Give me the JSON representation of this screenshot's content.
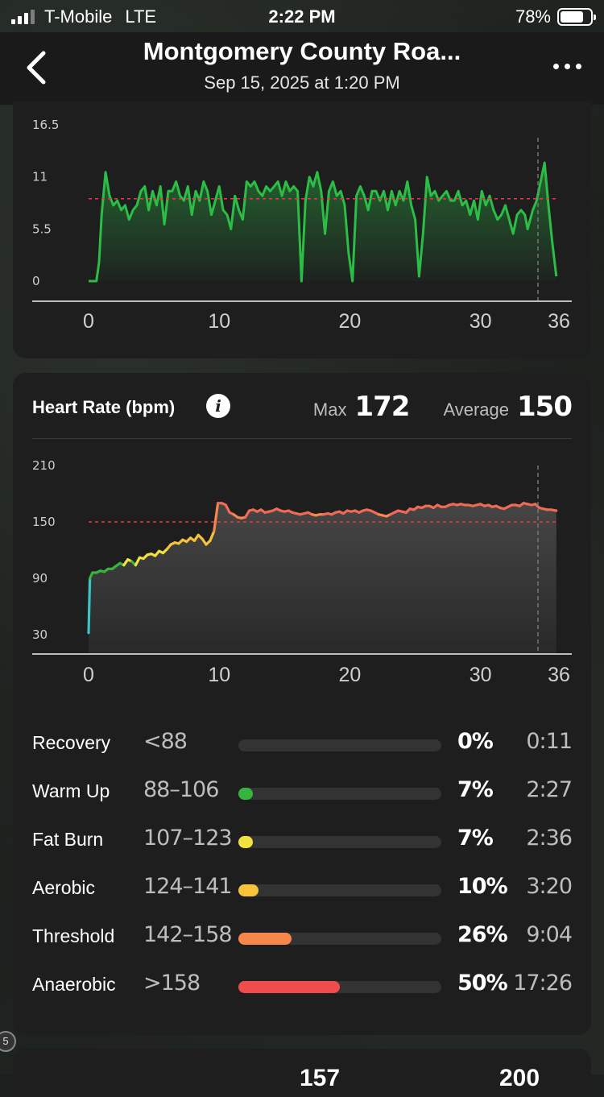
{
  "status_bar": {
    "carrier": "T-Mobile",
    "network": "LTE",
    "time": "2:22 PM",
    "battery": "78%",
    "battery_level": 0.78
  },
  "header": {
    "title": "Montgomery County Roa...",
    "subtitle": "Sep 15, 2025 at 1:20 PM",
    "back_icon": "chevron-left-icon",
    "more_icon": "more-dots-icon"
  },
  "speed_chart": {
    "y_ticks": [
      "16.5",
      "11",
      "5.5",
      "0"
    ],
    "x_ticks": [
      "0",
      "10",
      "20",
      "30",
      "36"
    ],
    "average_value": 8.7,
    "color": "#2bbd46",
    "chart_data": {
      "type": "area",
      "ylim": [
        0,
        16.5
      ],
      "xlim": [
        0,
        36
      ],
      "x": [
        0,
        0.3,
        0.6,
        0.8,
        1.0,
        1.3,
        1.6,
        1.9,
        2.2,
        2.5,
        2.8,
        3.1,
        3.4,
        3.7,
        4.0,
        4.3,
        4.6,
        4.9,
        5.2,
        5.5,
        5.8,
        6.1,
        6.4,
        6.7,
        7.0,
        7.3,
        7.6,
        7.9,
        8.2,
        8.5,
        8.8,
        9.1,
        9.4,
        9.7,
        10.0,
        10.3,
        10.6,
        10.9,
        11.2,
        11.5,
        11.8,
        12.1,
        12.4,
        12.7,
        13.0,
        13.3,
        13.6,
        13.9,
        14.2,
        14.5,
        14.8,
        15.1,
        15.4,
        15.7,
        16.0,
        16.3,
        16.6,
        16.9,
        17.2,
        17.5,
        17.8,
        18.1,
        18.4,
        18.7,
        19.0,
        19.3,
        19.6,
        19.9,
        20.2,
        20.5,
        20.8,
        21.1,
        21.4,
        21.7,
        22.0,
        22.3,
        22.6,
        22.9,
        23.2,
        23.5,
        23.8,
        24.1,
        24.4,
        24.7,
        25.0,
        25.3,
        25.6,
        25.9,
        26.2,
        26.5,
        26.8,
        27.1,
        27.4,
        27.7,
        28.0,
        28.3,
        28.6,
        28.9,
        29.2,
        29.5,
        29.8,
        30.1,
        30.4,
        30.7,
        31.0,
        31.3,
        31.6,
        31.9,
        32.2,
        32.5,
        32.8,
        33.1,
        33.4,
        33.6,
        34.0,
        34.3,
        34.6,
        34.9,
        35.2,
        35.5,
        35.8
      ],
      "values": [
        0,
        0,
        0,
        2,
        7,
        11.5,
        9,
        8,
        8.5,
        7.5,
        8,
        6.5,
        7.5,
        8,
        9.5,
        10,
        7.5,
        9.5,
        8,
        10,
        6,
        9.5,
        9.5,
        10.5,
        9,
        8.5,
        10,
        7,
        9.5,
        8.5,
        10.5,
        9.5,
        7,
        8.5,
        10,
        7.5,
        7,
        5.5,
        9,
        7.5,
        6.5,
        10.5,
        10,
        10.5,
        9.5,
        9,
        10,
        9.5,
        10,
        10.5,
        9,
        10.5,
        9.5,
        10,
        9.5,
        0,
        8.5,
        11,
        10,
        11.5,
        9.5,
        5,
        9.5,
        10.5,
        9,
        9.5,
        8,
        3,
        0,
        9,
        10,
        9,
        7.5,
        9.5,
        9.5,
        8.5,
        9.5,
        7.5,
        9.5,
        8,
        9.5,
        8.5,
        10.5,
        8,
        6.5,
        0.5,
        5,
        11,
        9,
        9.5,
        8.5,
        9,
        9.5,
        8.5,
        8.5,
        9.5,
        8,
        8.5,
        7,
        8.5,
        6.5,
        9.5,
        8,
        9,
        7.5,
        6.5,
        7,
        8,
        6.5,
        5,
        7,
        7.5,
        7,
        5.5,
        7.5,
        8.5,
        10.5,
        12.5,
        8,
        4,
        0.5
      ]
    }
  },
  "heart_rate": {
    "title": "Heart Rate (bpm)",
    "info_icon": "info-icon",
    "max_label": "Max",
    "max_value": "172",
    "avg_label": "Average",
    "avg_value": "150",
    "y_ticks": [
      "210",
      "150",
      "90",
      "30"
    ],
    "x_ticks": [
      "0",
      "10",
      "20",
      "30",
      "36"
    ],
    "chart_data": {
      "type": "line",
      "ylim": [
        30,
        210
      ],
      "xlim": [
        0,
        36
      ],
      "average": 150,
      "x": [
        0,
        0.1,
        0.3,
        0.6,
        0.9,
        1.2,
        1.5,
        1.8,
        2.1,
        2.4,
        2.7,
        3.0,
        3.3,
        3.6,
        3.9,
        4.2,
        4.5,
        4.8,
        5.1,
        5.4,
        5.7,
        6.0,
        6.3,
        6.6,
        6.9,
        7.2,
        7.5,
        7.8,
        8.1,
        8.4,
        8.7,
        9.0,
        9.3,
        9.6,
        9.9,
        10.2,
        10.5,
        10.8,
        11.1,
        11.4,
        11.7,
        12.0,
        12.3,
        12.6,
        12.9,
        13.2,
        13.5,
        13.8,
        14.1,
        14.4,
        14.7,
        15.0,
        15.3,
        15.6,
        15.9,
        16.2,
        16.5,
        16.8,
        17.1,
        17.4,
        17.7,
        18.0,
        18.3,
        18.6,
        18.9,
        19.2,
        19.5,
        19.8,
        20.1,
        20.4,
        20.7,
        21.0,
        21.3,
        21.6,
        21.9,
        22.2,
        22.5,
        22.8,
        23.1,
        23.4,
        23.7,
        24.0,
        24.3,
        24.6,
        24.9,
        25.2,
        25.5,
        25.8,
        26.1,
        26.4,
        26.7,
        27.0,
        27.3,
        27.6,
        27.9,
        28.2,
        28.5,
        28.8,
        29.1,
        29.4,
        29.7,
        30.0,
        30.3,
        30.6,
        30.9,
        31.2,
        31.5,
        31.8,
        32.1,
        32.4,
        32.7,
        33.0,
        33.3,
        33.6,
        33.9,
        34.2,
        34.5,
        34.8,
        35.1,
        35.4,
        35.8
      ],
      "values": [
        32,
        90,
        96,
        96,
        98,
        97,
        100,
        100,
        103,
        106,
        104,
        110,
        108,
        104,
        112,
        111,
        115,
        116,
        114,
        119,
        117,
        121,
        126,
        128,
        127,
        131,
        129,
        133,
        130,
        136,
        132,
        126,
        130,
        140,
        170,
        170,
        168,
        160,
        158,
        155,
        154,
        155,
        162,
        163,
        161,
        163,
        160,
        161,
        162,
        164,
        162,
        161,
        162,
        160,
        159,
        158,
        159,
        160,
        158,
        157,
        158,
        158,
        159,
        158,
        160,
        161,
        159,
        162,
        161,
        162,
        160,
        162,
        163,
        162,
        160,
        158,
        157,
        156,
        158,
        160,
        162,
        161,
        160,
        164,
        163,
        166,
        165,
        167,
        167,
        165,
        168,
        166,
        166,
        168,
        169,
        168,
        169,
        168,
        168,
        167,
        168,
        169,
        167,
        168,
        166,
        167,
        165,
        164,
        166,
        168,
        168,
        167,
        170,
        169,
        168,
        169,
        165,
        164,
        163,
        163,
        162
      ]
    },
    "zones": [
      {
        "name": "Recovery",
        "range": "<88",
        "pct": "0%",
        "time": "0:11",
        "fraction": 0.0,
        "color": "#3a3a3a"
      },
      {
        "name": "Warm Up",
        "range": "88–106",
        "pct": "7%",
        "time": "2:27",
        "fraction": 0.07,
        "color": "#35b53f"
      },
      {
        "name": "Fat Burn",
        "range": "107–123",
        "pct": "7%",
        "time": "2:36",
        "fraction": 0.07,
        "color": "#f2e23d"
      },
      {
        "name": "Aerobic",
        "range": "124–141",
        "pct": "10%",
        "time": "3:20",
        "fraction": 0.1,
        "color": "#f6c33a"
      },
      {
        "name": "Threshold",
        "range": "142–158",
        "pct": "26%",
        "time": "9:04",
        "fraction": 0.26,
        "color": "#f5874a"
      },
      {
        "name": "Anaerobic",
        "range": ">158",
        "pct": "50%",
        "time": "17:26",
        "fraction": 0.5,
        "color": "#f04c4c"
      }
    ]
  },
  "elevation": {
    "value1": "157",
    "value2": "200"
  },
  "map_badge": "5"
}
